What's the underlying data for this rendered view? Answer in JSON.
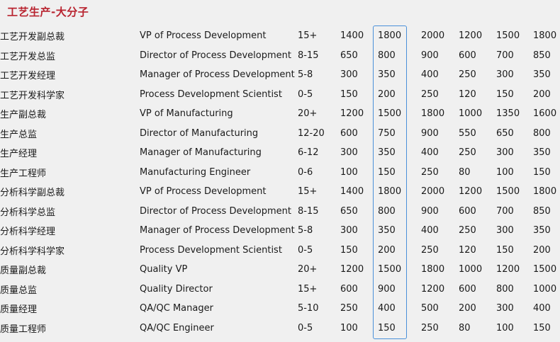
{
  "section": {
    "title": "工艺生产-大分子"
  },
  "rows": [
    {
      "cn": "工艺开发副总裁",
      "en": "VP of Process Development",
      "exp": "15+",
      "v1": "1400",
      "v2": "1800",
      "v3": "2000",
      "v4": "1200",
      "v5": "1500",
      "v6": "1800"
    },
    {
      "cn": "工艺开发总监",
      "en": "Director of Process Development",
      "exp": "8-15",
      "v1": "650",
      "v2": "800",
      "v3": "900",
      "v4": "600",
      "v5": "700",
      "v6": "850"
    },
    {
      "cn": "工艺开发经理",
      "en": "Manager of Process Development",
      "exp": "5-8",
      "v1": "300",
      "v2": "350",
      "v3": "400",
      "v4": "250",
      "v5": "300",
      "v6": "350"
    },
    {
      "cn": "工艺开发科学家",
      "en": "Process Development Scientist",
      "exp": "0-5",
      "v1": "150",
      "v2": "200",
      "v3": "250",
      "v4": "120",
      "v5": "150",
      "v6": "200"
    },
    {
      "cn": "生产副总裁",
      "en": "VP of Manufacturing",
      "exp": "20+",
      "v1": "1200",
      "v2": "1500",
      "v3": "1800",
      "v4": "1000",
      "v5": "1350",
      "v6": "1600"
    },
    {
      "cn": "生产总监",
      "en": "Director of Manufacturing",
      "exp": "12-20",
      "v1": "600",
      "v2": "750",
      "v3": "900",
      "v4": "550",
      "v5": "650",
      "v6": "800"
    },
    {
      "cn": "生产经理",
      "en": "Manager of Manufacturing",
      "exp": "6-12",
      "v1": "300",
      "v2": "350",
      "v3": "400",
      "v4": "250",
      "v5": "300",
      "v6": "350"
    },
    {
      "cn": "生产工程师",
      "en": "Manufacturing Engineer",
      "exp": "0-6",
      "v1": "100",
      "v2": "150",
      "v3": "250",
      "v4": "80",
      "v5": "100",
      "v6": "150"
    },
    {
      "cn": "分析科学副总裁",
      "en": "VP of Process Development",
      "exp": "15+",
      "v1": "1400",
      "v2": "1800",
      "v3": "2000",
      "v4": "1200",
      "v5": "1500",
      "v6": "1800"
    },
    {
      "cn": "分析科学总监",
      "en": "Director of Process Development",
      "exp": "8-15",
      "v1": "650",
      "v2": "800",
      "v3": "900",
      "v4": "600",
      "v5": "700",
      "v6": "850"
    },
    {
      "cn": "分析科学经理",
      "en": "Manager of Process Development",
      "exp": "5-8",
      "v1": "300",
      "v2": "350",
      "v3": "400",
      "v4": "250",
      "v5": "300",
      "v6": "350"
    },
    {
      "cn": "分析科学科学家",
      "en": "Process Development Scientist",
      "exp": "0-5",
      "v1": "150",
      "v2": "200",
      "v3": "250",
      "v4": "120",
      "v5": "150",
      "v6": "200"
    },
    {
      "cn": "质量副总裁",
      "en": "Quality VP",
      "exp": "20+",
      "v1": "1200",
      "v2": "1500",
      "v3": "1800",
      "v4": "1000",
      "v5": "1200",
      "v6": "1500"
    },
    {
      "cn": "质量总监",
      "en": "Quality Director",
      "exp": "15+",
      "v1": "600",
      "v2": "900",
      "v3": "1200",
      "v4": "600",
      "v5": "800",
      "v6": "1000"
    },
    {
      "cn": "质量经理",
      "en": "QA/QC Manager",
      "exp": "5-10",
      "v1": "250",
      "v2": "400",
      "v3": "500",
      "v4": "200",
      "v5": "300",
      "v6": "400"
    },
    {
      "cn": "质量工程师",
      "en": "QA/QC Engineer",
      "exp": "0-5",
      "v1": "100",
      "v2": "150",
      "v3": "250",
      "v4": "80",
      "v5": "100",
      "v6": "150"
    }
  ]
}
